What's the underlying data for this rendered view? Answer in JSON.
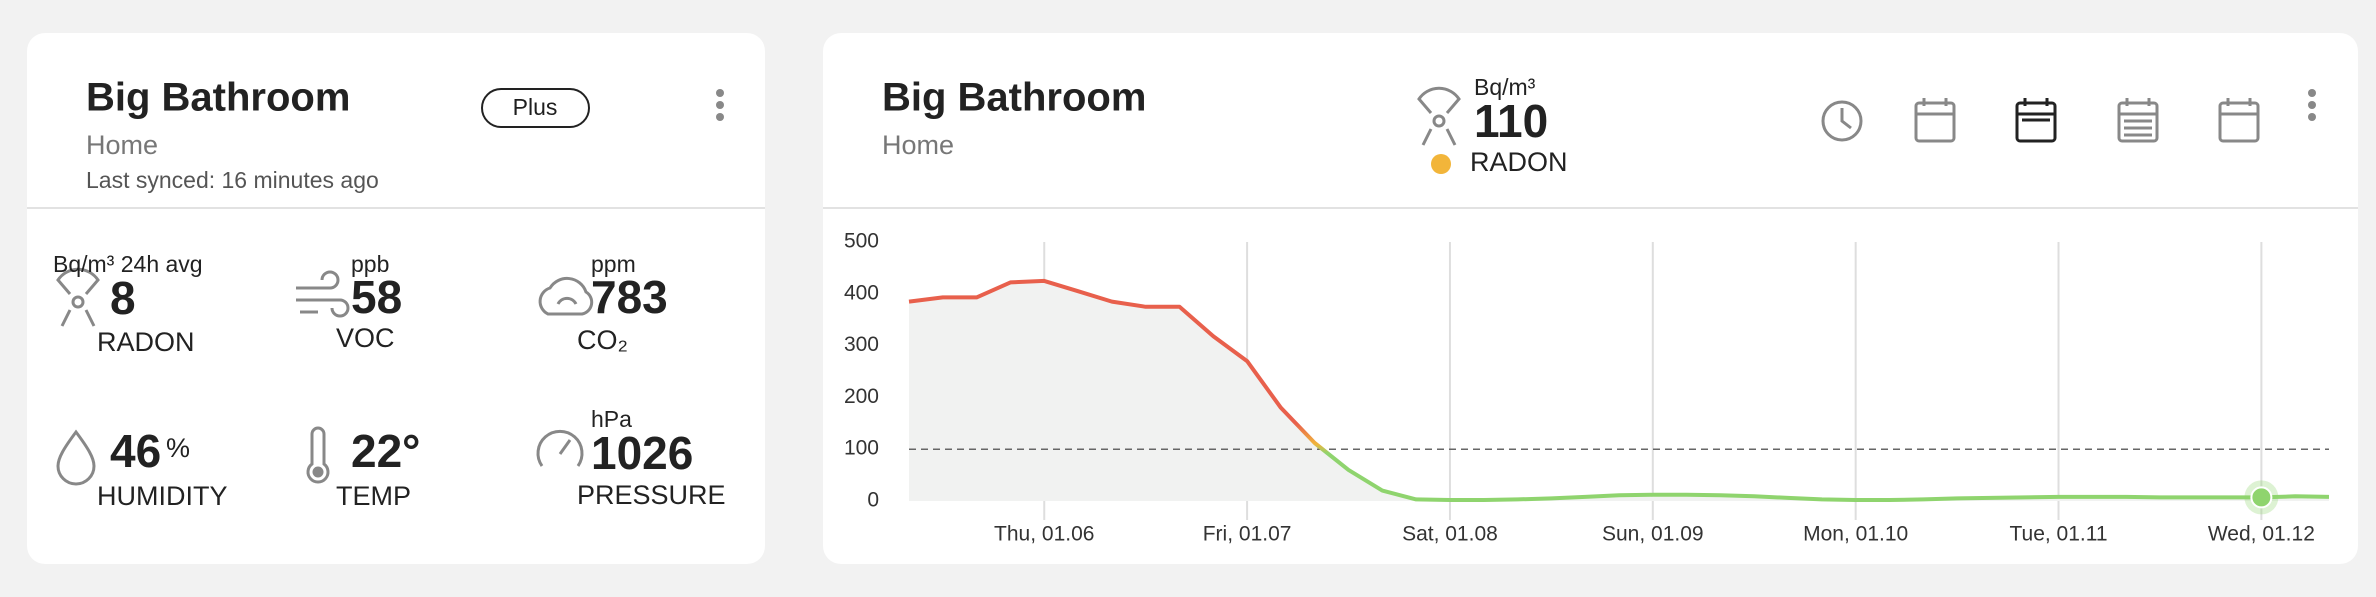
{
  "summary_card": {
    "title": "Big Bathroom",
    "location": "Home",
    "plan": "Plus",
    "last_synced": "Last synced: 16 minutes ago",
    "metrics": [
      {
        "unit": "Bq/m³ 24h avg",
        "value": 8,
        "label": "RADON"
      },
      {
        "unit": "ppb",
        "value": 58,
        "label": "VOC"
      },
      {
        "unit": "ppm",
        "value": 783,
        "label": "CO₂"
      },
      {
        "unit": "%",
        "value": 46,
        "label": "HUMIDITY"
      },
      {
        "unit": "°",
        "value": 22,
        "label": "TEMP"
      },
      {
        "unit": "hPa",
        "value": 1026,
        "label": "PRESSURE"
      }
    ]
  },
  "detail_card": {
    "title": "Big Bathroom",
    "location": "Home",
    "current": {
      "unit": "Bq/m³",
      "value": 110,
      "label": "RADON",
      "color": "#f2b53a"
    }
  },
  "chart_data": {
    "type": "line",
    "categories": [
      null,
      null,
      null,
      null,
      "Thu, 01.06",
      null,
      null,
      null,
      null,
      null,
      "Fri, 01.07",
      null,
      null,
      null,
      null,
      null,
      "Sat, 01.08",
      null,
      null,
      null,
      null,
      null,
      "Sun, 01.09",
      null,
      null,
      null,
      null,
      null,
      "Mon, 01.10",
      null,
      null,
      null,
      null,
      null,
      "Tue, 01.11",
      null,
      null,
      null,
      null,
      null,
      "Wed, 01.12",
      null,
      null
    ],
    "values": [
      385,
      393,
      393,
      422,
      425,
      405,
      385,
      375,
      375,
      318,
      270,
      180,
      112,
      60,
      20,
      3,
      2,
      2,
      3,
      5,
      8,
      11,
      12,
      12,
      11,
      9,
      6,
      3,
      2,
      2,
      3,
      5,
      6,
      7,
      8,
      8,
      8,
      7,
      7,
      7,
      7,
      9,
      8
    ],
    "line_colors": [
      "#e8604c",
      "#f0b43c",
      "#8fd46e"
    ],
    "area_color": "#f1f2f1",
    "ylim": [
      0,
      500
    ],
    "yticks": [
      0,
      100,
      200,
      300,
      400,
      500
    ],
    "reference_line": 100
  }
}
